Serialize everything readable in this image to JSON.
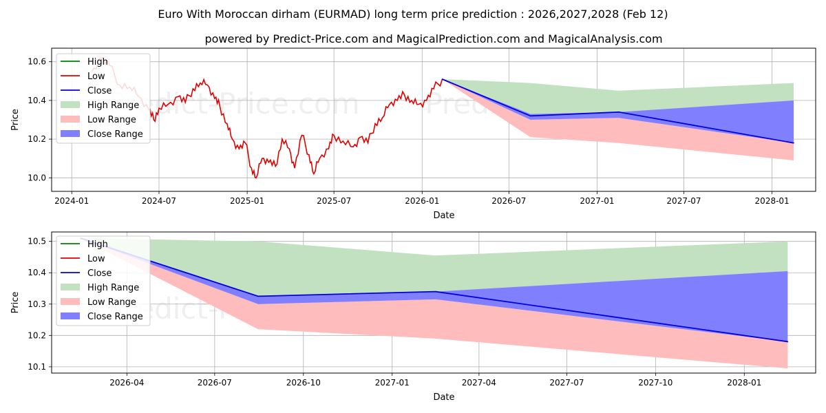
{
  "title": "Euro With Moroccan dirham (EURMAD) long term price prediction : 2026,2027,2028 (Feb 12)",
  "subtitle": "powered by Predict-Price.com and MagicalPrediction.com and MagicalAnalysis.com",
  "watermark": "Predict-Price.com",
  "colors": {
    "high": "#008000",
    "low": "#e00000",
    "close": "#0000dd",
    "high_range": "#c1e1c1",
    "low_range": "#ffbcbc",
    "close_range": "#8080ff"
  },
  "chart_data": [
    {
      "type": "line",
      "xlabel": "Date",
      "ylabel": "Price",
      "xlim": [
        "2023-11-20",
        "2028-04-01"
      ],
      "ylim": [
        9.93,
        10.67
      ],
      "x_ticks": [
        "2024-01",
        "2024-07",
        "2025-01",
        "2025-07",
        "2026-01",
        "2026-07",
        "2027-01",
        "2027-07",
        "2028-01"
      ],
      "y_ticks": [
        "10.0",
        "10.2",
        "10.4",
        "10.6"
      ],
      "legend": [
        "High",
        "Low",
        "Close",
        "High Range",
        "Low Range",
        "Close Range"
      ],
      "history": {
        "name": "Low",
        "points": [
          [
            "2024-02-12",
            10.55
          ],
          [
            "2024-03-01",
            10.62
          ],
          [
            "2024-03-20",
            10.58
          ],
          [
            "2024-04-10",
            10.48
          ],
          [
            "2024-05-01",
            10.47
          ],
          [
            "2024-05-20",
            10.42
          ],
          [
            "2024-06-10",
            10.35
          ],
          [
            "2024-06-20",
            10.3
          ],
          [
            "2024-07-01",
            10.36
          ],
          [
            "2024-07-20",
            10.38
          ],
          [
            "2024-08-10",
            10.42
          ],
          [
            "2024-08-25",
            10.39
          ],
          [
            "2024-09-10",
            10.46
          ],
          [
            "2024-09-25",
            10.49
          ],
          [
            "2024-10-10",
            10.48
          ],
          [
            "2024-10-25",
            10.41
          ],
          [
            "2024-11-05",
            10.37
          ],
          [
            "2024-11-20",
            10.28
          ],
          [
            "2024-12-01",
            10.2
          ],
          [
            "2024-12-15",
            10.15
          ],
          [
            "2024-12-28",
            10.18
          ],
          [
            "2025-01-10",
            10.05
          ],
          [
            "2025-01-20",
            10.0
          ],
          [
            "2025-02-01",
            10.1
          ],
          [
            "2025-02-15",
            10.08
          ],
          [
            "2025-03-01",
            10.06
          ],
          [
            "2025-03-15",
            10.2
          ],
          [
            "2025-03-30",
            10.15
          ],
          [
            "2025-04-10",
            10.05
          ],
          [
            "2025-04-25",
            10.22
          ],
          [
            "2025-05-10",
            10.12
          ],
          [
            "2025-05-20",
            10.02
          ],
          [
            "2025-06-01",
            10.1
          ],
          [
            "2025-06-20",
            10.15
          ],
          [
            "2025-07-01",
            10.22
          ],
          [
            "2025-07-20",
            10.19
          ],
          [
            "2025-08-10",
            10.16
          ],
          [
            "2025-08-25",
            10.21
          ],
          [
            "2025-09-10",
            10.18
          ],
          [
            "2025-09-25",
            10.28
          ],
          [
            "2025-10-10",
            10.31
          ],
          [
            "2025-10-25",
            10.38
          ],
          [
            "2025-11-10",
            10.4
          ],
          [
            "2025-11-25",
            10.43
          ],
          [
            "2025-12-10",
            10.4
          ],
          [
            "2025-12-25",
            10.38
          ],
          [
            "2026-01-10",
            10.4
          ],
          [
            "2026-01-25",
            10.46
          ],
          [
            "2026-02-12",
            10.51
          ]
        ]
      },
      "forecast": {
        "x": [
          "2026-02-12",
          "2026-08-15",
          "2027-02-15",
          "2028-02-15"
        ],
        "high_upper": [
          10.51,
          10.49,
          10.45,
          10.49
        ],
        "low_lower": [
          10.51,
          10.21,
          10.18,
          10.09
        ],
        "close_upper": [
          10.51,
          10.33,
          10.34,
          10.4
        ],
        "close_lower": [
          10.51,
          10.3,
          10.31,
          10.18
        ],
        "close": [
          10.51,
          10.32,
          10.34,
          10.18
        ]
      }
    },
    {
      "type": "line",
      "xlabel": "Date",
      "ylabel": "Price",
      "xlim": [
        "2026-01-13",
        "2028-03-15"
      ],
      "ylim": [
        10.08,
        10.53
      ],
      "x_ticks": [
        "2026-04",
        "2026-07",
        "2026-10",
        "2027-01",
        "2027-04",
        "2027-07",
        "2027-10",
        "2028-01"
      ],
      "y_ticks": [
        "10.1",
        "10.2",
        "10.3",
        "10.4",
        "10.5"
      ],
      "legend": [
        "High",
        "Low",
        "Close",
        "High Range",
        "Low Range",
        "Close Range"
      ],
      "forecast": {
        "x": [
          "2026-02-12",
          "2026-08-15",
          "2027-02-15",
          "2028-02-15"
        ],
        "high_upper": [
          10.51,
          10.5,
          10.455,
          10.5
        ],
        "low_lower": [
          10.51,
          10.22,
          10.19,
          10.095
        ],
        "close_upper": [
          10.51,
          10.325,
          10.34,
          10.405
        ],
        "close_lower": [
          10.51,
          10.3,
          10.315,
          10.18
        ],
        "close": [
          10.51,
          10.325,
          10.34,
          10.18
        ]
      }
    }
  ]
}
